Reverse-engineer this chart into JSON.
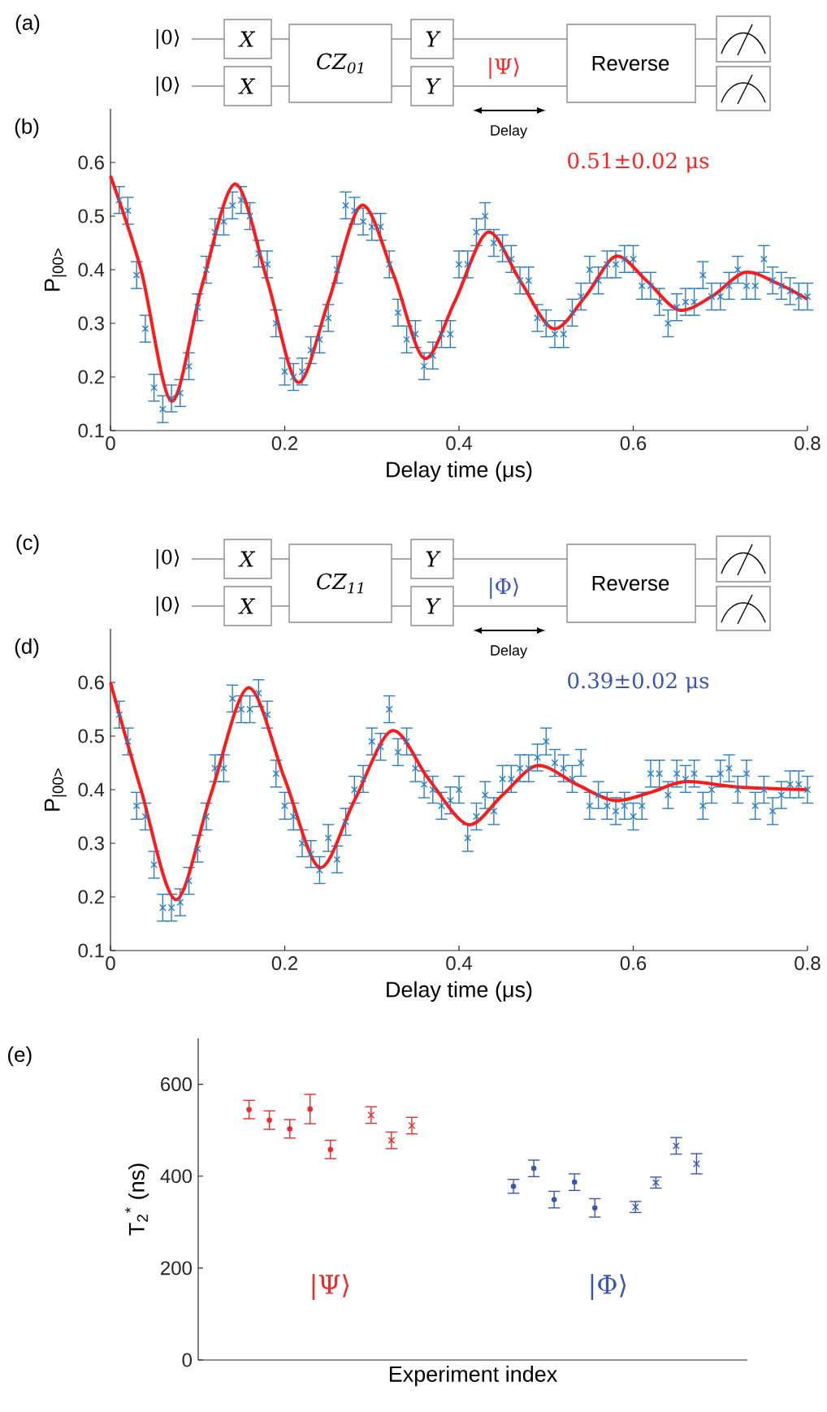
{
  "chart_data": [
    {
      "type": "other",
      "annotations": [
        "(a)",
        "|0⟩",
        "|0⟩",
        "X",
        "X",
        "CZ$_{01}$",
        "Y",
        "Y",
        "|Ψ⟩",
        "Reverse",
        "Delay"
      ]
    },
    {
      "type": "scatter",
      "xlabel": "Delay time (μs)",
      "ylabel": "P$_{|00>}$",
      "annotations": [
        "(b)",
        "0.51±0.02 μs"
      ],
      "xlim": [
        0,
        0.8
      ],
      "xticks": [
        0,
        0.2,
        0.4,
        0.6,
        0.8
      ],
      "ylim": [
        0.1,
        0.7
      ],
      "yticks": [
        0.1,
        0.2,
        0.3,
        0.4,
        0.5,
        0.6
      ],
      "series": [
        {
          "type": "scatter",
          "marker": "cross",
          "color": "#2b7ec4",
          "x": [
            0.01,
            0.02,
            0.03,
            0.04,
            0.05,
            0.06,
            0.07,
            0.08,
            0.09,
            0.1,
            0.11,
            0.12,
            0.13,
            0.14,
            0.15,
            0.16,
            0.17,
            0.18,
            0.19,
            0.2,
            0.21,
            0.22,
            0.23,
            0.24,
            0.25,
            0.26,
            0.27,
            0.28,
            0.29,
            0.3,
            0.31,
            0.32,
            0.33,
            0.34,
            0.35,
            0.36,
            0.37,
            0.38,
            0.39,
            0.4,
            0.41,
            0.42,
            0.43,
            0.44,
            0.45,
            0.46,
            0.47,
            0.48,
            0.49,
            0.5,
            0.51,
            0.52,
            0.53,
            0.54,
            0.55,
            0.56,
            0.57,
            0.58,
            0.59,
            0.6,
            0.61,
            0.62,
            0.63,
            0.64,
            0.65,
            0.66,
            0.67,
            0.68,
            0.69,
            0.7,
            0.71,
            0.72,
            0.73,
            0.74,
            0.75,
            0.76,
            0.77,
            0.78,
            0.79,
            0.8
          ],
          "values": [
            0.53,
            0.51,
            0.39,
            0.29,
            0.18,
            0.14,
            0.16,
            0.17,
            0.22,
            0.33,
            0.4,
            0.47,
            0.49,
            0.52,
            0.53,
            0.5,
            0.43,
            0.41,
            0.3,
            0.21,
            0.2,
            0.21,
            0.25,
            0.27,
            0.31,
            0.4,
            0.52,
            0.51,
            0.49,
            0.48,
            0.48,
            0.41,
            0.32,
            0.27,
            0.28,
            0.22,
            0.24,
            0.28,
            0.28,
            0.41,
            0.41,
            0.47,
            0.5,
            0.45,
            0.44,
            0.42,
            0.38,
            0.38,
            0.31,
            0.3,
            0.28,
            0.28,
            0.32,
            0.35,
            0.4,
            0.38,
            0.41,
            0.41,
            0.42,
            0.42,
            0.37,
            0.37,
            0.34,
            0.3,
            0.33,
            0.34,
            0.34,
            0.39,
            0.35,
            0.35,
            0.37,
            0.4,
            0.37,
            0.37,
            0.42,
            0.38,
            0.37,
            0.36,
            0.35,
            0.35
          ],
          "errors": [
            0.025,
            0.025,
            0.025,
            0.025,
            0.025,
            0.025,
            0.025,
            0.025,
            0.025,
            0.025,
            0.025,
            0.025,
            0.025,
            0.025,
            0.025,
            0.025,
            0.025,
            0.025,
            0.025,
            0.025,
            0.025,
            0.025,
            0.025,
            0.025,
            0.025,
            0.025,
            0.025,
            0.025,
            0.025,
            0.025,
            0.025,
            0.025,
            0.025,
            0.025,
            0.025,
            0.025,
            0.025,
            0.025,
            0.025,
            0.025,
            0.025,
            0.025,
            0.025,
            0.025,
            0.025,
            0.025,
            0.025,
            0.025,
            0.025,
            0.025,
            0.025,
            0.025,
            0.025,
            0.025,
            0.025,
            0.025,
            0.025,
            0.025,
            0.025,
            0.025,
            0.025,
            0.025,
            0.025,
            0.025,
            0.025,
            0.025,
            0.025,
            0.025,
            0.025,
            0.025,
            0.025,
            0.025,
            0.025,
            0.025,
            0.025,
            0.025,
            0.025,
            0.025,
            0.025,
            0.025
          ]
        },
        {
          "type": "line",
          "color": "#ff1a1a",
          "x": [
            0,
            0.035,
            0.07,
            0.105,
            0.143,
            0.18,
            0.215,
            0.25,
            0.288,
            0.325,
            0.36,
            0.395,
            0.433,
            0.47,
            0.508,
            0.545,
            0.58,
            0.615,
            0.652,
            0.69,
            0.728,
            0.765,
            0.8
          ],
          "values": [
            0.575,
            0.4,
            0.155,
            0.37,
            0.56,
            0.38,
            0.19,
            0.34,
            0.52,
            0.39,
            0.235,
            0.34,
            0.47,
            0.38,
            0.29,
            0.35,
            0.425,
            0.38,
            0.325,
            0.35,
            0.395,
            0.375,
            0.345
          ]
        }
      ]
    },
    {
      "type": "other",
      "annotations": [
        "(c)",
        "|0⟩",
        "|0⟩",
        "X",
        "X",
        "CZ$_{11}$",
        "Y",
        "Y",
        "|Φ⟩",
        "Reverse",
        "Delay"
      ]
    },
    {
      "type": "scatter",
      "xlabel": "Delay time (μs)",
      "ylabel": "P$_{|00>}$",
      "annotations": [
        "(d)",
        "0.39±0.02 μs"
      ],
      "xlim": [
        0,
        0.8
      ],
      "xticks": [
        0,
        0.2,
        0.4,
        0.6,
        0.8
      ],
      "ylim": [
        0.1,
        0.7
      ],
      "yticks": [
        0.1,
        0.2,
        0.3,
        0.4,
        0.5,
        0.6
      ],
      "series": [
        {
          "type": "scatter",
          "marker": "cross",
          "color": "#2b7ec4",
          "x": [
            0.01,
            0.02,
            0.03,
            0.04,
            0.05,
            0.06,
            0.07,
            0.08,
            0.09,
            0.1,
            0.11,
            0.12,
            0.13,
            0.14,
            0.15,
            0.16,
            0.17,
            0.18,
            0.19,
            0.2,
            0.21,
            0.22,
            0.23,
            0.24,
            0.25,
            0.26,
            0.27,
            0.28,
            0.29,
            0.3,
            0.31,
            0.32,
            0.33,
            0.34,
            0.35,
            0.36,
            0.37,
            0.38,
            0.39,
            0.4,
            0.41,
            0.42,
            0.43,
            0.44,
            0.45,
            0.46,
            0.47,
            0.48,
            0.49,
            0.5,
            0.51,
            0.52,
            0.53,
            0.54,
            0.55,
            0.56,
            0.57,
            0.58,
            0.59,
            0.6,
            0.61,
            0.62,
            0.63,
            0.64,
            0.65,
            0.66,
            0.67,
            0.68,
            0.69,
            0.7,
            0.71,
            0.72,
            0.73,
            0.74,
            0.75,
            0.76,
            0.77,
            0.78,
            0.79,
            0.8
          ],
          "values": [
            0.54,
            0.49,
            0.37,
            0.35,
            0.26,
            0.18,
            0.18,
            0.19,
            0.23,
            0.29,
            0.35,
            0.44,
            0.44,
            0.57,
            0.55,
            0.55,
            0.58,
            0.54,
            0.43,
            0.37,
            0.35,
            0.3,
            0.28,
            0.25,
            0.31,
            0.27,
            0.34,
            0.4,
            0.42,
            0.49,
            0.48,
            0.55,
            0.47,
            0.49,
            0.44,
            0.41,
            0.4,
            0.37,
            0.38,
            0.4,
            0.31,
            0.35,
            0.39,
            0.36,
            0.42,
            0.42,
            0.44,
            0.44,
            0.46,
            0.49,
            0.45,
            0.44,
            0.42,
            0.45,
            0.37,
            0.39,
            0.37,
            0.36,
            0.37,
            0.35,
            0.37,
            0.43,
            0.43,
            0.39,
            0.43,
            0.42,
            0.43,
            0.37,
            0.4,
            0.43,
            0.44,
            0.4,
            0.43,
            0.37,
            0.4,
            0.36,
            0.39,
            0.41,
            0.41,
            0.4
          ],
          "errors": [
            0.025,
            0.025,
            0.025,
            0.025,
            0.025,
            0.025,
            0.025,
            0.025,
            0.025,
            0.025,
            0.025,
            0.025,
            0.025,
            0.025,
            0.025,
            0.025,
            0.025,
            0.025,
            0.025,
            0.025,
            0.025,
            0.025,
            0.025,
            0.025,
            0.025,
            0.025,
            0.025,
            0.025,
            0.025,
            0.025,
            0.025,
            0.025,
            0.025,
            0.025,
            0.025,
            0.025,
            0.025,
            0.025,
            0.025,
            0.025,
            0.025,
            0.025,
            0.025,
            0.025,
            0.025,
            0.025,
            0.025,
            0.025,
            0.025,
            0.025,
            0.025,
            0.025,
            0.025,
            0.025,
            0.025,
            0.025,
            0.025,
            0.025,
            0.025,
            0.025,
            0.025,
            0.025,
            0.025,
            0.025,
            0.025,
            0.025,
            0.025,
            0.025,
            0.025,
            0.025,
            0.025,
            0.025,
            0.025,
            0.025,
            0.025,
            0.025,
            0.025,
            0.025,
            0.025,
            0.025
          ]
        },
        {
          "type": "line",
          "color": "#ff1a1a",
          "x": [
            0,
            0.035,
            0.075,
            0.115,
            0.158,
            0.2,
            0.24,
            0.28,
            0.323,
            0.365,
            0.41,
            0.45,
            0.49,
            0.535,
            0.578,
            0.62,
            0.66,
            0.72,
            0.8
          ],
          "values": [
            0.6,
            0.4,
            0.195,
            0.39,
            0.59,
            0.42,
            0.255,
            0.38,
            0.51,
            0.42,
            0.335,
            0.39,
            0.445,
            0.41,
            0.38,
            0.395,
            0.415,
            0.405,
            0.4
          ]
        }
      ]
    },
    {
      "type": "scatter",
      "xlabel": "Experiment index",
      "ylabel": "T$_{2}$$^{*}$ (ns)",
      "annotations": [
        "(e)",
        "|Ψ⟩",
        "|Φ⟩"
      ],
      "categories": [
        null,
        null,
        null,
        null,
        null,
        null,
        null,
        null,
        null,
        null,
        null,
        null,
        null,
        null,
        null,
        null,
        null,
        null,
        null,
        null,
        null,
        null,
        null,
        null,
        null,
        null,
        null
      ],
      "ylim": [
        0,
        700
      ],
      "yticks": [
        0,
        200,
        400,
        600
      ],
      "tick_labels": "y",
      "series": [
        {
          "type": "scatter",
          "marker": "circle",
          "color": "#ee2a2a",
          "values": [
            null,
            null,
            545,
            522,
            503,
            546,
            458,
            null,
            null,
            null,
            null,
            null,
            null,
            null,
            null,
            null,
            null,
            null,
            null,
            null,
            null,
            null,
            null,
            null,
            null,
            null,
            null
          ],
          "errors": [
            null,
            null,
            20,
            20,
            20,
            32,
            20,
            null,
            null,
            null,
            null,
            null,
            null,
            null,
            null,
            null,
            null,
            null,
            null,
            null,
            null,
            null,
            null,
            null,
            null,
            null,
            null
          ]
        },
        {
          "type": "scatter",
          "marker": "cross",
          "color": "#ee2a2a",
          "values": [
            null,
            null,
            null,
            null,
            null,
            null,
            null,
            null,
            533,
            478,
            510,
            null,
            null,
            null,
            null,
            null,
            null,
            null,
            null,
            null,
            null,
            null,
            null,
            null,
            null,
            null,
            null
          ],
          "errors": [
            null,
            null,
            null,
            null,
            null,
            null,
            null,
            null,
            18,
            18,
            18,
            null,
            null,
            null,
            null,
            null,
            null,
            null,
            null,
            null,
            null,
            null,
            null,
            null,
            null,
            null,
            null
          ]
        },
        {
          "type": "scatter",
          "marker": "circle",
          "color": "#3a55b4",
          "values": [
            null,
            null,
            null,
            null,
            null,
            null,
            null,
            null,
            null,
            null,
            null,
            null,
            null,
            null,
            null,
            378,
            417,
            349,
            387,
            331,
            null,
            null,
            null,
            null,
            null,
            null,
            null
          ],
          "errors": [
            null,
            null,
            null,
            null,
            null,
            null,
            null,
            null,
            null,
            null,
            null,
            null,
            null,
            null,
            null,
            15,
            18,
            18,
            18,
            20,
            null,
            null,
            null,
            null,
            null,
            null,
            null
          ]
        },
        {
          "type": "scatter",
          "marker": "cross",
          "color": "#3a55b4",
          "values": [
            null,
            null,
            null,
            null,
            null,
            null,
            null,
            null,
            null,
            null,
            null,
            null,
            null,
            null,
            null,
            null,
            null,
            null,
            null,
            null,
            null,
            333,
            386,
            466,
            427,
            null,
            null
          ],
          "errors": [
            null,
            null,
            null,
            null,
            null,
            null,
            null,
            null,
            null,
            null,
            null,
            null,
            null,
            null,
            null,
            null,
            null,
            null,
            null,
            null,
            null,
            12,
            12,
            18,
            22,
            null,
            null
          ]
        }
      ]
    }
  ]
}
